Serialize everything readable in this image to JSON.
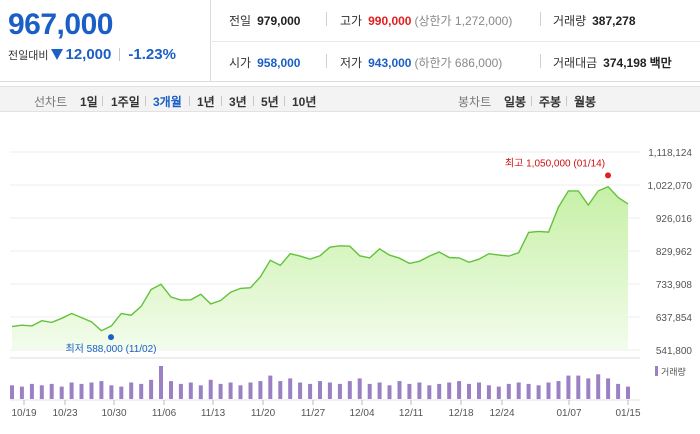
{
  "summary": {
    "price": "967,000",
    "change_label": "전일대비",
    "change_abs": "12,000",
    "change_pct": "-1.23%",
    "change_color": "#1b5fc6"
  },
  "stats": {
    "prev_label": "전일",
    "prev_value": "979,000",
    "high_label": "고가",
    "high_value": "990,000",
    "upper_limit": "(상한가 1,272,000)",
    "volume_label": "거래량",
    "volume_value": "387,278",
    "open_label": "시가",
    "open_value": "958,000",
    "low_label": "저가",
    "low_value": "943,000",
    "lower_limit": "(하한가 686,000)",
    "amount_label": "거래대금",
    "amount_value": "374,198",
    "amount_unit": "백만"
  },
  "line_tabs": {
    "label": "선차트",
    "items": [
      "1일",
      "1주일",
      "3개월",
      "1년",
      "3년",
      "5년",
      "10년"
    ],
    "selected": "3개월"
  },
  "candle_tabs": {
    "label": "봉차트",
    "items": [
      "일봉",
      "주봉",
      "월봉"
    ]
  },
  "chart_data": {
    "type": "area",
    "y_ticks": [
      "1,118,124",
      "1,022,070",
      "926,016",
      "829,962",
      "733,908",
      "637,854",
      "541,800"
    ],
    "ylim": [
      541800,
      1118124
    ],
    "x_ticks": [
      "10/19",
      "10/23",
      "10/30",
      "11/06",
      "11/13",
      "11/20",
      "11/27",
      "12/04",
      "12/11",
      "12/18",
      "12/24",
      "01/07",
      "01/15"
    ],
    "values": [
      610000,
      614000,
      612000,
      627000,
      622000,
      634000,
      648000,
      636000,
      624000,
      598000,
      612000,
      648000,
      643000,
      669000,
      718000,
      733000,
      696000,
      687000,
      688000,
      704000,
      676000,
      686000,
      710000,
      721000,
      723000,
      755000,
      803000,
      788000,
      822000,
      815000,
      806000,
      816000,
      841000,
      845000,
      844000,
      816000,
      810000,
      836000,
      818000,
      809000,
      794000,
      800000,
      815000,
      827000,
      811000,
      810000,
      797000,
      806000,
      822000,
      818000,
      815000,
      825000,
      884000,
      887000,
      885000,
      958000,
      1005000,
      1005000,
      964000,
      1005000,
      1017000,
      986000,
      967000
    ],
    "max_label": "최고 1,050,000 (01/14)",
    "max_value": 1050000,
    "min_label": "최저 588,000 (11/02)",
    "min_value": 588000,
    "volume_legend": "거래량",
    "volumes": [
      10,
      9,
      11,
      10,
      11,
      9,
      12,
      11,
      12,
      13,
      10,
      9,
      12,
      11,
      14,
      24,
      13,
      11,
      12,
      10,
      14,
      11,
      12,
      10,
      12,
      13,
      17,
      13,
      15,
      12,
      11,
      13,
      12,
      11,
      13,
      15,
      11,
      12,
      10,
      13,
      11,
      12,
      10,
      11,
      12,
      13,
      11,
      12,
      10,
      9,
      11,
      12,
      11,
      10,
      12,
      13,
      17,
      17,
      15,
      18,
      15,
      11,
      9
    ],
    "line_color": "#62c23a",
    "fill_color": "#c6f0a6",
    "volume_color": "#9b80c4"
  }
}
